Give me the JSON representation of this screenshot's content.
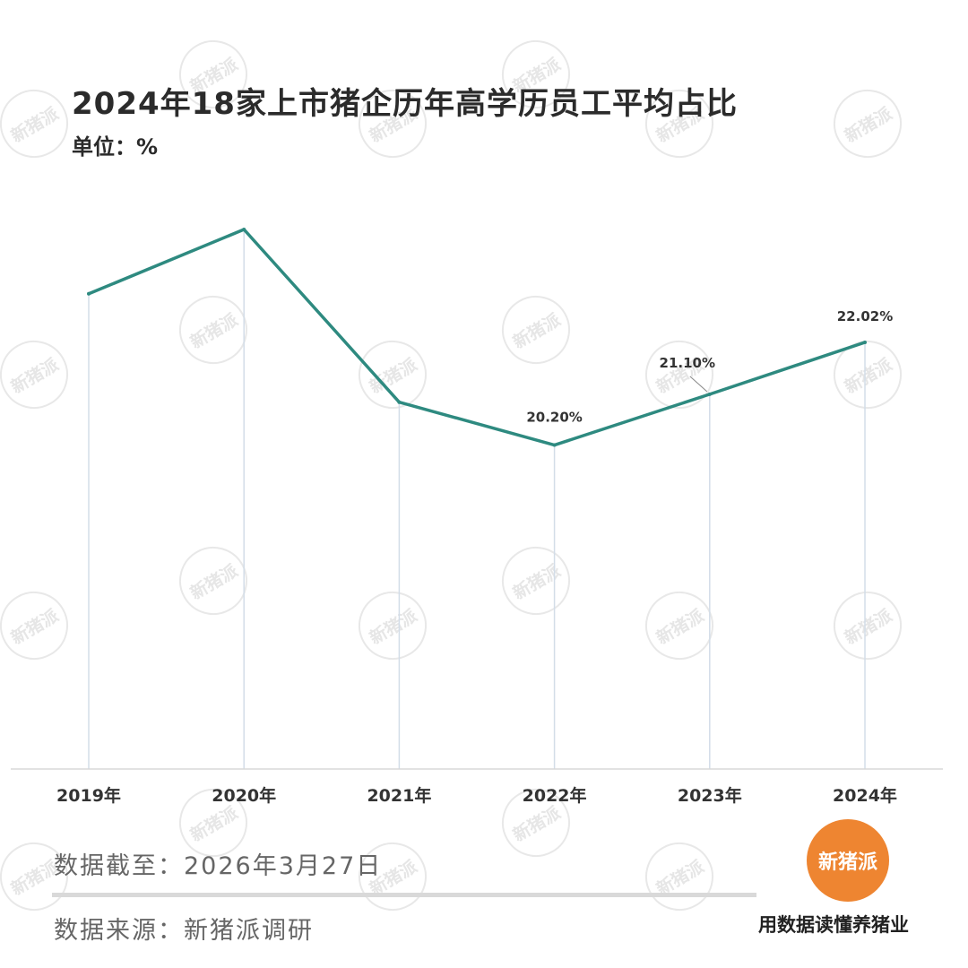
{
  "chart_data": {
    "type": "line",
    "title": "2024年18家上市猪企历年高学历员工平均占比",
    "unit_label": "单位：%",
    "categories": [
      "2019年",
      "2020年",
      "2021年",
      "2022年",
      "2023年",
      "2024年"
    ],
    "series": [
      {
        "values": [
          22.88,
          24.02,
          20.96,
          20.2,
          21.1,
          22.02
        ],
        "data_labels": [
          "",
          "",
          "",
          "20.20%",
          "21.10%",
          "22.02%"
        ],
        "color": "#2e8a80"
      }
    ],
    "ylim": [
      14.46,
      24.02
    ],
    "grid": false,
    "drop_lines": true,
    "drop_line_color": "#d3dde8"
  },
  "footer": {
    "date_text": "数据截至：2026年3月27日",
    "source_text": "数据来源：新猪派调研"
  },
  "brand": {
    "logo_text": "新猪派",
    "slogan": "用数据读懂养猪业",
    "watermark_text": "新猪派",
    "color": "#ee8531"
  }
}
